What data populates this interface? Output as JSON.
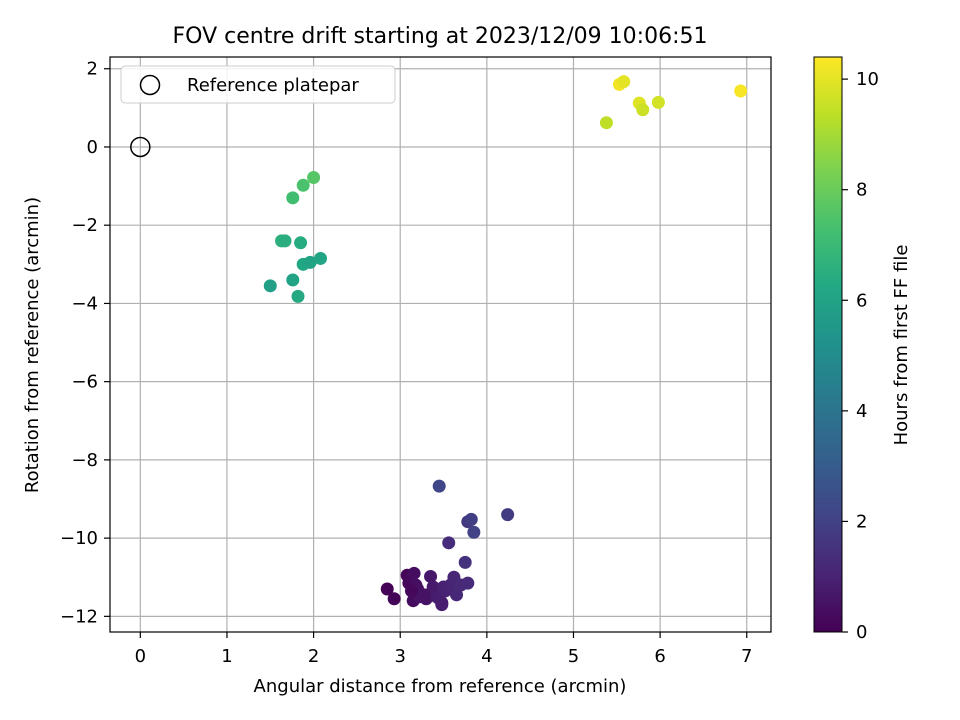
{
  "chart_data": {
    "type": "scatter",
    "title": "FOV centre drift starting at 2023/12/09 10:06:51",
    "xlabel": "Angular distance from reference (arcmin)",
    "ylabel": "Rotation from reference (arcmin)",
    "xlim": [
      -0.35,
      7.28
    ],
    "ylim": [
      -12.4,
      2.3
    ],
    "xticks": [
      0,
      1,
      2,
      3,
      4,
      5,
      6,
      7
    ],
    "yticks": [
      -12,
      -10,
      -8,
      -6,
      -4,
      -2,
      0,
      2
    ],
    "grid": true,
    "legend": {
      "position": "top-left",
      "entries": [
        "Reference platepar"
      ]
    },
    "reference_point": {
      "x": 0,
      "y": 0,
      "label": "Reference platepar"
    },
    "colorbar": {
      "label": "Hours from first FF file",
      "colormap": "viridis",
      "range": [
        0,
        10.4
      ],
      "ticks": [
        0,
        2,
        4,
        6,
        8,
        10
      ]
    },
    "series": [
      {
        "x": [
          2.85,
          2.93,
          3.08,
          3.1,
          3.12,
          3.15,
          3.16,
          3.18,
          3.2,
          3.22,
          3.25,
          3.3,
          3.35,
          3.38,
          3.4,
          3.42,
          3.45,
          3.48,
          3.5,
          3.52,
          3.58,
          3.62,
          3.65,
          3.7,
          3.78,
          3.13,
          3.28,
          3.48,
          3.56,
          3.75,
          3.78,
          3.82,
          3.85,
          4.24,
          3.45
        ],
        "y": [
          -11.3,
          -11.55,
          -10.95,
          -11.15,
          -11.05,
          -11.6,
          -10.9,
          -11.2,
          -11.3,
          -11.5,
          -11.45,
          -11.55,
          -10.98,
          -11.25,
          -11.4,
          -11.5,
          -11.55,
          -11.7,
          -11.25,
          -11.35,
          -11.2,
          -11.0,
          -11.45,
          -11.2,
          -11.15,
          -11.35,
          -11.45,
          -11.65,
          -10.12,
          -10.62,
          -9.58,
          -9.52,
          -9.85,
          -9.4,
          -8.67
        ],
        "hours": [
          0.05,
          0.1,
          0.15,
          0.2,
          0.25,
          0.3,
          0.35,
          0.4,
          0.45,
          0.5,
          0.55,
          0.6,
          0.65,
          0.7,
          0.75,
          0.8,
          0.85,
          0.9,
          0.95,
          1.0,
          1.05,
          1.1,
          1.15,
          1.2,
          1.25,
          0.22,
          0.5,
          0.85,
          1.3,
          1.5,
          1.7,
          1.9,
          2.0,
          1.8,
          2.2
        ]
      },
      {
        "x": [
          2.0,
          1.88,
          1.76,
          1.63,
          1.67,
          1.85,
          1.88,
          1.96,
          2.08,
          1.76,
          1.5,
          1.82
        ],
        "y": [
          -0.78,
          -0.98,
          -1.3,
          -2.4,
          -2.4,
          -2.45,
          -3.0,
          -2.95,
          -2.85,
          -3.4,
          -3.55,
          -3.82
        ],
        "hours": [
          7.6,
          7.4,
          7.2,
          6.6,
          6.5,
          6.4,
          6.2,
          6.0,
          6.1,
          6.0,
          5.9,
          6.3
        ]
      },
      {
        "x": [
          5.38,
          5.53,
          5.58,
          5.76,
          5.8,
          5.98,
          6.93
        ],
        "y": [
          0.62,
          1.6,
          1.67,
          1.12,
          0.95,
          1.14,
          1.43
        ],
        "hours": [
          9.4,
          10.2,
          10.0,
          9.9,
          9.6,
          9.7,
          10.3
        ]
      }
    ]
  }
}
